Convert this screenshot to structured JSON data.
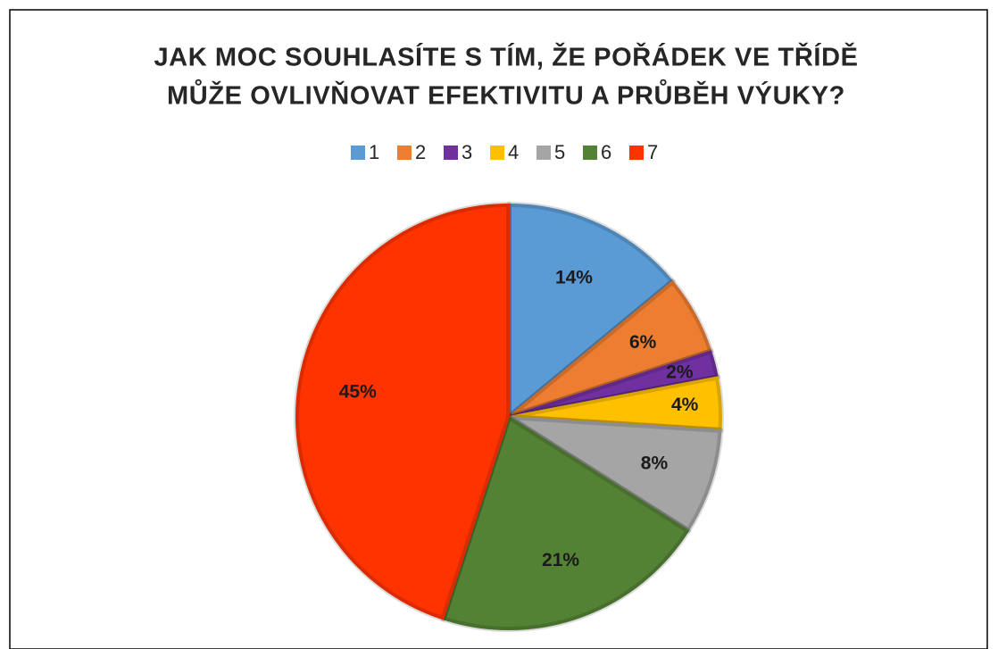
{
  "chart_data": {
    "type": "pie",
    "title": [
      "JAK MOC SOUHLASÍTE S TÍM, ŽE POŘÁDEK VE TŘÍDĚ",
      "MŮŽE OVLIVŇOVAT EFEKTIVITU A PRŮBĚH VÝUKY?"
    ],
    "categories": [
      "1",
      "2",
      "3",
      "4",
      "5",
      "6",
      "7"
    ],
    "values": [
      14,
      6,
      2,
      4,
      8,
      21,
      45
    ],
    "value_labels": [
      "14%",
      "6%",
      "2%",
      "4%",
      "8%",
      "21%",
      "45%"
    ],
    "colors": [
      "#5b9bd5",
      "#ed7d31",
      "#7030a0",
      "#ffc000",
      "#a5a5a5",
      "#548235",
      "#ff3300"
    ],
    "legend": "top"
  }
}
